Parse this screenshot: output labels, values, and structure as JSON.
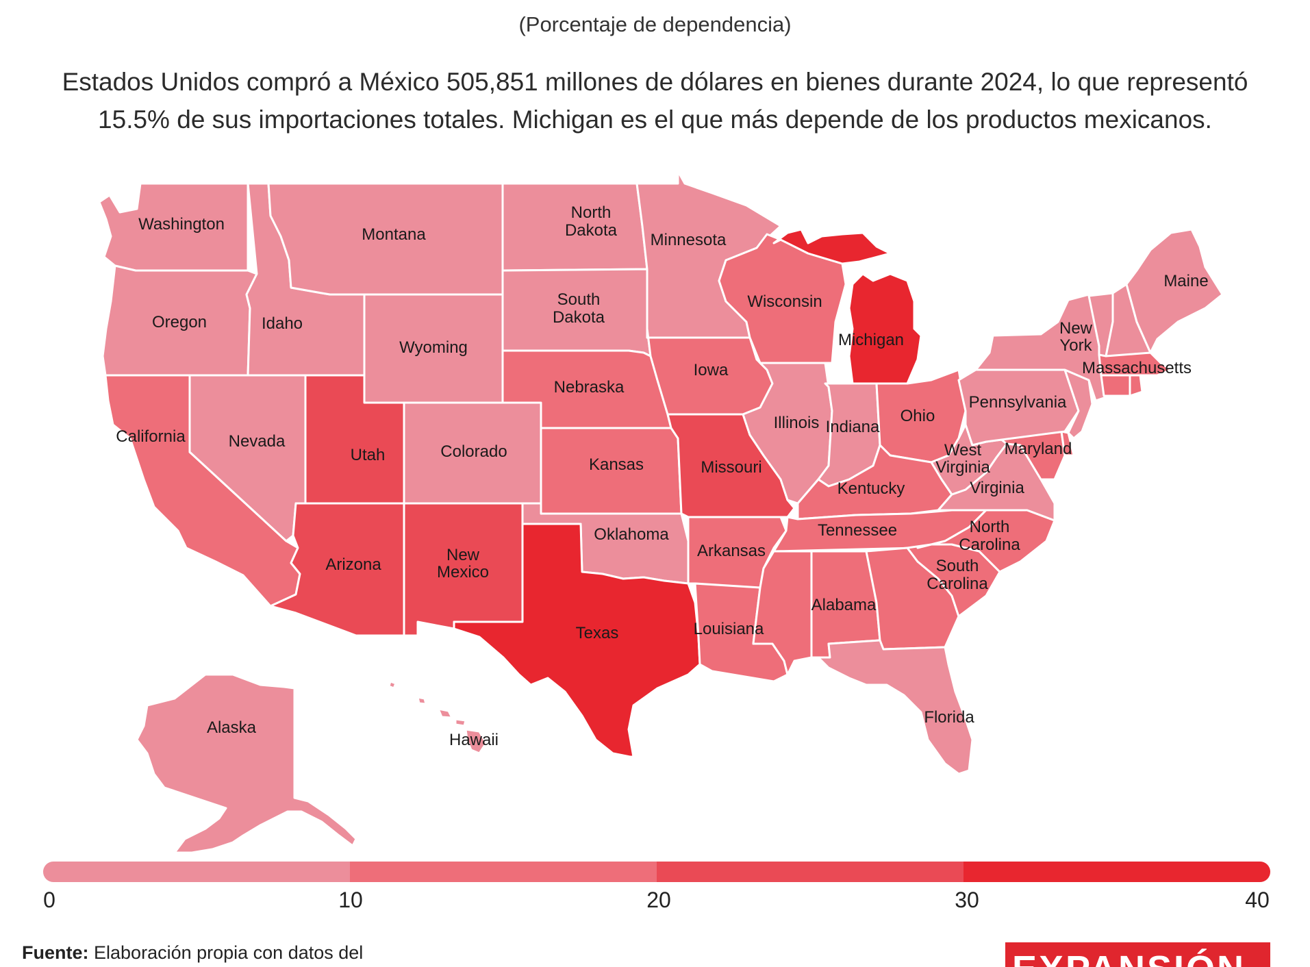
{
  "header": {
    "subtitle": "(Porcentaje de dependencia)",
    "lead_line1": "Estados Unidos compró a México 505,851 millones de dólares en bienes durante 2024, lo que representó",
    "lead_line2": "15.5% de sus importaciones totales. Michigan es el que más depende de los productos mexicanos."
  },
  "colors": {
    "band_0_10": "#ec8e9b",
    "band_10_20": "#ee6e79",
    "band_20_30": "#ea4a55",
    "band_30_40": "#e8262f",
    "background": "#ffffff",
    "border": "#ffffff",
    "logo": "#e0262e"
  },
  "legend": {
    "min": 0,
    "max": 40,
    "ticks": [
      "0",
      "10",
      "20",
      "30",
      "40"
    ]
  },
  "map": {
    "states": [
      {
        "name": "Washington",
        "band": "0-10"
      },
      {
        "name": "Oregon",
        "band": "0-10"
      },
      {
        "name": "California",
        "band": "10-20"
      },
      {
        "name": "Nevada",
        "band": "0-10"
      },
      {
        "name": "Idaho",
        "band": "0-10"
      },
      {
        "name": "Montana",
        "band": "0-10"
      },
      {
        "name": "Wyoming",
        "band": "0-10"
      },
      {
        "name": "Utah",
        "band": "20-30"
      },
      {
        "name": "Colorado",
        "band": "0-10"
      },
      {
        "name": "Arizona",
        "band": "20-30"
      },
      {
        "name": "New Mexico",
        "band": "20-30"
      },
      {
        "name": "North Dakota",
        "band": "0-10"
      },
      {
        "name": "South Dakota",
        "band": "0-10"
      },
      {
        "name": "Nebraska",
        "band": "10-20"
      },
      {
        "name": "Kansas",
        "band": "10-20"
      },
      {
        "name": "Oklahoma",
        "band": "0-10"
      },
      {
        "name": "Texas",
        "band": "30-40"
      },
      {
        "name": "Minnesota",
        "band": "0-10"
      },
      {
        "name": "Iowa",
        "band": "10-20"
      },
      {
        "name": "Missouri",
        "band": "20-30"
      },
      {
        "name": "Arkansas",
        "band": "10-20"
      },
      {
        "name": "Louisiana",
        "band": "10-20"
      },
      {
        "name": "Wisconsin",
        "band": "10-20"
      },
      {
        "name": "Illinois",
        "band": "0-10"
      },
      {
        "name": "Michigan",
        "band": "30-40"
      },
      {
        "name": "Indiana",
        "band": "0-10"
      },
      {
        "name": "Ohio",
        "band": "10-20"
      },
      {
        "name": "Kentucky",
        "band": "10-20"
      },
      {
        "name": "Tennessee",
        "band": "10-20"
      },
      {
        "name": "Mississippi",
        "band": "10-20"
      },
      {
        "name": "Alabama",
        "band": "10-20"
      },
      {
        "name": "Georgia",
        "band": "10-20"
      },
      {
        "name": "Florida",
        "band": "0-10"
      },
      {
        "name": "South Carolina",
        "band": "10-20"
      },
      {
        "name": "North Carolina",
        "band": "10-20"
      },
      {
        "name": "Virginia",
        "band": "0-10"
      },
      {
        "name": "West Virginia",
        "band": "0-10"
      },
      {
        "name": "Maryland",
        "band": "10-20"
      },
      {
        "name": "Delaware",
        "band": "10-20"
      },
      {
        "name": "Pennsylvania",
        "band": "0-10"
      },
      {
        "name": "New Jersey",
        "band": "0-10"
      },
      {
        "name": "New York",
        "band": "0-10"
      },
      {
        "name": "Connecticut",
        "band": "10-20"
      },
      {
        "name": "Rhode Island",
        "band": "10-20"
      },
      {
        "name": "Massachusetts",
        "band": "10-20"
      },
      {
        "name": "Vermont",
        "band": "0-10"
      },
      {
        "name": "New Hampshire",
        "band": "0-10"
      },
      {
        "name": "Maine",
        "band": "0-10"
      },
      {
        "name": "Alaska",
        "band": "0-10"
      },
      {
        "name": "Hawaii",
        "band": "0-10"
      }
    ],
    "labels": {
      "Washington": "Washington",
      "Oregon": "Oregon",
      "California": "California",
      "Nevada": "Nevada",
      "Idaho": "Idaho",
      "Montana": "Montana",
      "Wyoming": "Wyoming",
      "Utah": "Utah",
      "Colorado": "Colorado",
      "Arizona": "Arizona",
      "New_Mexico_1": "New",
      "New_Mexico_2": "Mexico",
      "North_Dakota_1": "North",
      "North_Dakota_2": "Dakota",
      "South_Dakota_1": "South",
      "South_Dakota_2": "Dakota",
      "Nebraska": "Nebraska",
      "Kansas": "Kansas",
      "Oklahoma": "Oklahoma",
      "Texas": "Texas",
      "Minnesota": "Minnesota",
      "Iowa": "Iowa",
      "Missouri": "Missouri",
      "Arkansas": "Arkansas",
      "Louisiana": "Louisiana",
      "Wisconsin": "Wisconsin",
      "Illinois": "Illinois",
      "Michigan": "Michigan",
      "Indiana": "Indiana",
      "Ohio": "Ohio",
      "Kentucky": "Kentucky",
      "Tennessee": "Tennessee",
      "Alabama": "Alabama",
      "Florida": "Florida",
      "South_Carolina_1": "South",
      "South_Carolina_2": "Carolina",
      "North_Carolina_1": "North",
      "North_Carolina_2": "Carolina",
      "Virginia": "Virginia",
      "West_Virginia_1": "West",
      "West_Virginia_2": "Virginia",
      "Maryland": "Maryland",
      "Pennsylvania": "Pennsylvania",
      "New_York_1": "New",
      "New_York_2": "York",
      "Massachusetts": "Massachusetts",
      "Maine": "Maine",
      "Alaska": "Alaska",
      "Hawaii": "Hawaii"
    }
  },
  "footer": {
    "source_label": "Fuente:",
    "source_text": "Elaboración propia con datos del",
    "logo_text": "EXPANSIÓN"
  }
}
